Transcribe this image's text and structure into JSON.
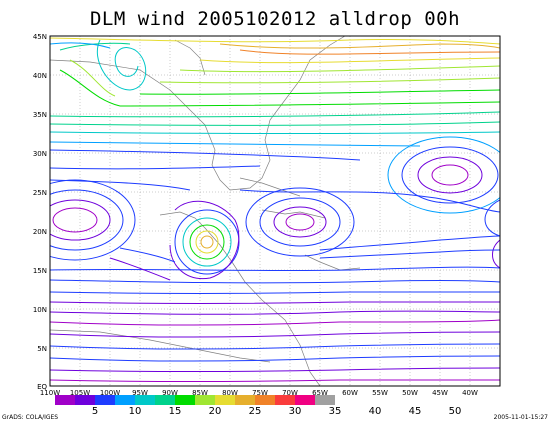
{
  "title": "DLM wind 2005102012 alldrop 00h",
  "lat_labels": [
    "45N",
    "40N",
    "35N",
    "30N",
    "25N",
    "20N",
    "15N",
    "10N",
    "5N",
    "EQ"
  ],
  "lon_labels": [
    "110W",
    "105W",
    "100W",
    "95W",
    "90W",
    "85W",
    "80W",
    "75W",
    "70W",
    "65W",
    "60W",
    "55W",
    "50W",
    "45W",
    "40W"
  ],
  "colorbar": {
    "labels": [
      "5",
      "10",
      "15",
      "20",
      "25",
      "30",
      "35",
      "40",
      "45",
      "50"
    ],
    "colors": [
      "#a000c8",
      "#6e00dc",
      "#1e3cff",
      "#00a0ff",
      "#00c8c8",
      "#00d28c",
      "#00dc00",
      "#a0e632",
      "#e6dc32",
      "#e6af2d",
      "#f08228",
      "#fa3c3c",
      "#f00082",
      "#a0a0a0"
    ]
  },
  "footer_left": "GrADS: COLA/IGES",
  "footer_right": "2005-11-01-15:27"
}
